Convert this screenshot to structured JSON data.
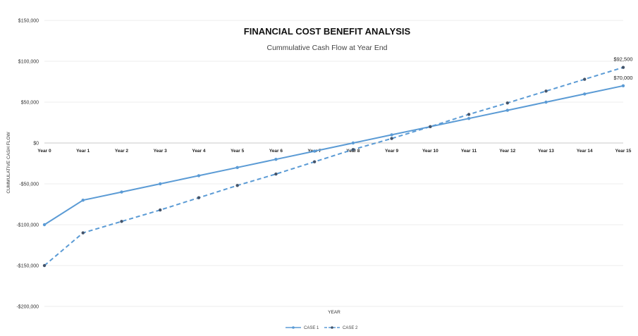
{
  "chart_data": {
    "type": "line",
    "title": "FINANCIAL COST BENEFIT ANALYSIS",
    "subtitle": "Cummulative  Cash Flow at Year End",
    "xlabel": "YEAR",
    "ylabel": "CUMMULATIVE CASH FLOW",
    "categories": [
      "Year 0",
      "Year 1",
      "Year 2",
      "Year 3",
      "Year 4",
      "Year 5",
      "Year 6",
      "Year 7",
      "Year 8",
      "Year 9",
      "Year 10",
      "Year 11",
      "Year 12",
      "Year 13",
      "Year 14",
      "Year 15"
    ],
    "ylim": [
      -200000,
      150000
    ],
    "yticks": [
      150000,
      100000,
      50000,
      0,
      -50000,
      -100000,
      -150000,
      -200000
    ],
    "ytick_labels": [
      "$150,000",
      "$100,000",
      "$50,000",
      "$0",
      "-$50,000",
      "-$100,000",
      "-$150,000",
      "-$200,000"
    ],
    "grid": true,
    "legend_position": "bottom",
    "series": [
      {
        "name": "CASE 1",
        "style": "solid",
        "color": "#5b9bd5",
        "values": [
          -100000,
          -70000,
          -60000,
          -50000,
          -40000,
          -30000,
          -20000,
          -10000,
          0,
          10000,
          20000,
          30000,
          40000,
          50000,
          60000,
          70000
        ],
        "end_label": "$70,000"
      },
      {
        "name": "CASE 2",
        "style": "dashed",
        "color": "#5b9bd5",
        "values": [
          -150000,
          -110000,
          -96000,
          -82000,
          -67000,
          -52000,
          -38000,
          -23000,
          -8000,
          5500,
          20000,
          35000,
          49000,
          63500,
          78000,
          92500
        ],
        "end_label": "$92,500"
      }
    ]
  }
}
